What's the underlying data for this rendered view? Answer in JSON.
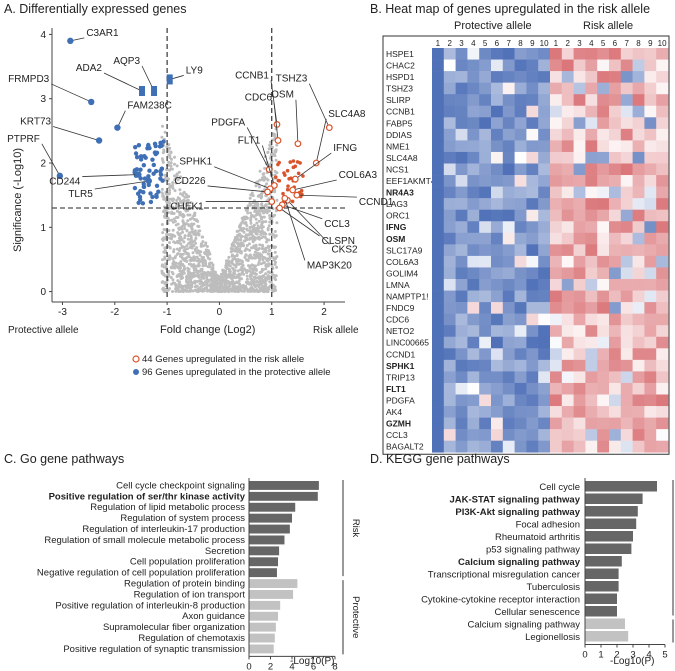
{
  "colors": {
    "risk": "#d9542a",
    "protective": "#3f6fb5",
    "grey": "#bdbdbd",
    "dark_bar": "#666666",
    "light_bar": "#c2c2c2"
  },
  "chart_data": [
    {
      "type": "scatter",
      "panel": "A",
      "title": "A. Differentially expressed genes",
      "xlabel": "Fold change (Log2)",
      "ylabel": "Significance (-Log10)",
      "xlim": [
        -3.2,
        2.4
      ],
      "ylim": [
        -0.1,
        4.1
      ],
      "x_ticks": [
        "-3",
        "-2",
        "-1",
        "0",
        "1",
        "2"
      ],
      "y_ticks": [
        "0",
        "1",
        "2",
        "3",
        "4"
      ],
      "left_label": "Protective allele",
      "right_label": "Risk allele",
      "legend": [
        {
          "label": "44 Genes upregulated in the risk allele",
          "marker": "open-circle"
        },
        {
          "label": "96 Genes upregulated in the protective allele",
          "marker": "filled-circle"
        }
      ],
      "thresholds": {
        "x": [
          -1,
          1
        ],
        "y": 1.3
      },
      "labeled_points": [
        {
          "gene": "C3AR1",
          "x": -2.85,
          "y": 3.9,
          "group": "protective"
        },
        {
          "gene": "AQP3",
          "x": -1.25,
          "y": 3.12,
          "group": "protective"
        },
        {
          "gene": "ADA2",
          "x": -1.48,
          "y": 3.12,
          "group": "protective"
        },
        {
          "gene": "LY9",
          "x": -0.95,
          "y": 3.3,
          "group": "protective"
        },
        {
          "gene": "FRMPD3",
          "x": -2.45,
          "y": 2.95,
          "group": "protective"
        },
        {
          "gene": "FAM238C",
          "x": -1.95,
          "y": 2.55,
          "group": "protective"
        },
        {
          "gene": "KRT73",
          "x": -2.3,
          "y": 2.35,
          "group": "protective"
        },
        {
          "gene": "PTPRF",
          "x": -3.05,
          "y": 1.8,
          "group": "protective"
        },
        {
          "gene": "CD244",
          "x": -1.55,
          "y": 1.82,
          "group": "protective"
        },
        {
          "gene": "TLR5",
          "x": -1.35,
          "y": 1.72,
          "group": "protective"
        },
        {
          "gene": "TSHZ3",
          "x": 2.1,
          "y": 2.55,
          "group": "risk"
        },
        {
          "gene": "CCNB1",
          "x": 1.1,
          "y": 2.6,
          "group": "risk"
        },
        {
          "gene": "OSM",
          "x": 1.5,
          "y": 2.3,
          "group": "risk"
        },
        {
          "gene": "SLC4A8",
          "x": 1.85,
          "y": 2.0,
          "group": "risk"
        },
        {
          "gene": "CDC6",
          "x": 1.12,
          "y": 2.35,
          "group": "risk"
        },
        {
          "gene": "PDGFA",
          "x": 0.95,
          "y": 1.9,
          "group": "risk"
        },
        {
          "gene": "IFNG",
          "x": 1.45,
          "y": 1.75,
          "group": "risk"
        },
        {
          "gene": "FLT1",
          "x": 1.05,
          "y": 1.65,
          "group": "risk"
        },
        {
          "gene": "SPHK1",
          "x": 0.97,
          "y": 1.6,
          "group": "risk"
        },
        {
          "gene": "COL6A3",
          "x": 1.4,
          "y": 1.58,
          "group": "risk"
        },
        {
          "gene": "CD226",
          "x": 0.92,
          "y": 1.55,
          "group": "risk"
        },
        {
          "gene": "CCND1",
          "x": 1.48,
          "y": 1.5,
          "group": "risk"
        },
        {
          "gene": "CHEK1",
          "x": 1.0,
          "y": 1.4,
          "group": "risk"
        },
        {
          "gene": "CCL3",
          "x": 1.2,
          "y": 1.35,
          "group": "risk"
        },
        {
          "gene": "CLSPN",
          "x": 1.15,
          "y": 1.3,
          "group": "risk"
        },
        {
          "gene": "CKS2",
          "x": 1.3,
          "y": 1.42,
          "group": "risk"
        },
        {
          "gene": "MAP3K20",
          "x": 1.25,
          "y": 1.45,
          "group": "risk"
        }
      ]
    },
    {
      "type": "heatmap",
      "panel": "B",
      "title": "B. Heat map of genes upregulated in the risk allele",
      "group_labels": [
        "Protective allele",
        "Risk allele"
      ],
      "columns": [
        "1",
        "2",
        "3",
        "4",
        "5",
        "6",
        "7",
        "8",
        "9",
        "10",
        "1",
        "2",
        "3",
        "4",
        "5",
        "6",
        "7",
        "8",
        "9",
        "10"
      ],
      "rows": [
        "HSPE1",
        "CHAC2",
        "HSPD1",
        "TSHZ3",
        "SLIRP",
        "CCNB1",
        "FABP5",
        "DDIAS",
        "NME1",
        "SLC4A8",
        "NCS1",
        "EEF1AKMT4",
        "NR4A3",
        "LAG3",
        "ORC1",
        "IFNG",
        "OSM",
        "SLC17A9",
        "COL6A3",
        "GOLIM4",
        "LMNA",
        "NAMPTP1!",
        "FNDC9",
        "CDC6",
        "NETO2",
        "LINC00665",
        "CCND1",
        "SPHK1",
        "TRIP13",
        "FLT1",
        "PDGFA",
        "AK4",
        "GZMH",
        "CCL3",
        "BAGALT2"
      ],
      "bold_rows": [
        "NR4A3",
        "IFNG",
        "OSM",
        "SPHK1",
        "FLT1",
        "GZMH"
      ]
    },
    {
      "type": "bar",
      "orientation": "horizontal",
      "panel": "C",
      "title": "C. Go gene pathways",
      "xlabel": "-Log10(P)",
      "xlim": [
        0,
        8
      ],
      "x_ticks": [
        "0",
        "2",
        "4",
        "6",
        "8"
      ],
      "groups": [
        {
          "label": "Risk",
          "count": 9
        },
        {
          "label": "Protective",
          "count": 7
        }
      ],
      "categories": [
        "Cell cycle checkpoint signaling",
        "Positive regulation of ser/thr kinase activity",
        "Regulation of lipid metabolic process",
        "Regulation of system process",
        "Regulation of interleukin-17 production",
        "Regulation of small molecule metabolic process",
        "Secretion",
        "Cell population proliferation",
        "Negative regulation of cell population proliferation",
        "Regulation of protein binding",
        "Regulation of ion transport",
        "Positive regulation of interleukin-8 production",
        "Axon guidance",
        "Supramolecular fiber organization",
        "Regulation of chemotaxis",
        "Positive regulation of synaptic transmission"
      ],
      "values": [
        6.5,
        6.4,
        4.3,
        4.0,
        3.8,
        3.3,
        2.8,
        2.7,
        2.6,
        4.5,
        4.1,
        2.9,
        2.7,
        2.5,
        2.4,
        2.3
      ],
      "bold": [
        false,
        true,
        false,
        false,
        false,
        false,
        false,
        false,
        false,
        false,
        false,
        false,
        false,
        false,
        false,
        false
      ]
    },
    {
      "type": "bar",
      "orientation": "horizontal",
      "panel": "D",
      "title": "D. KEGG gene pathways",
      "xlabel": "-Log10(P)",
      "xlim": [
        0,
        5
      ],
      "x_ticks": [
        "0",
        "1",
        "2",
        "3",
        "4",
        "5"
      ],
      "groups": [
        {
          "label": "Risk",
          "count": 11
        },
        {
          "label": "Protective",
          "count": 2
        }
      ],
      "categories": [
        "Cell cycle",
        "JAK-STAT signaling pathway",
        "PI3K-Akt signaling pathway",
        "Focal adhesion",
        "Rheumatoid arthritis",
        "p53 signaling pathway",
        "Calcium signaling pathway",
        "Transcriptional misregulation cancer",
        "Tuberculosis",
        "Cytokine-cytokine receptor interaction",
        "Cellular senescence",
        "Calcium signaling pathway",
        "Legionellosis"
      ],
      "values": [
        4.5,
        3.6,
        3.3,
        3.2,
        3.0,
        2.9,
        2.3,
        2.1,
        2.1,
        2.0,
        2.0,
        2.5,
        2.7
      ],
      "bold": [
        false,
        true,
        true,
        false,
        false,
        false,
        true,
        false,
        false,
        false,
        false,
        false,
        false
      ]
    }
  ]
}
